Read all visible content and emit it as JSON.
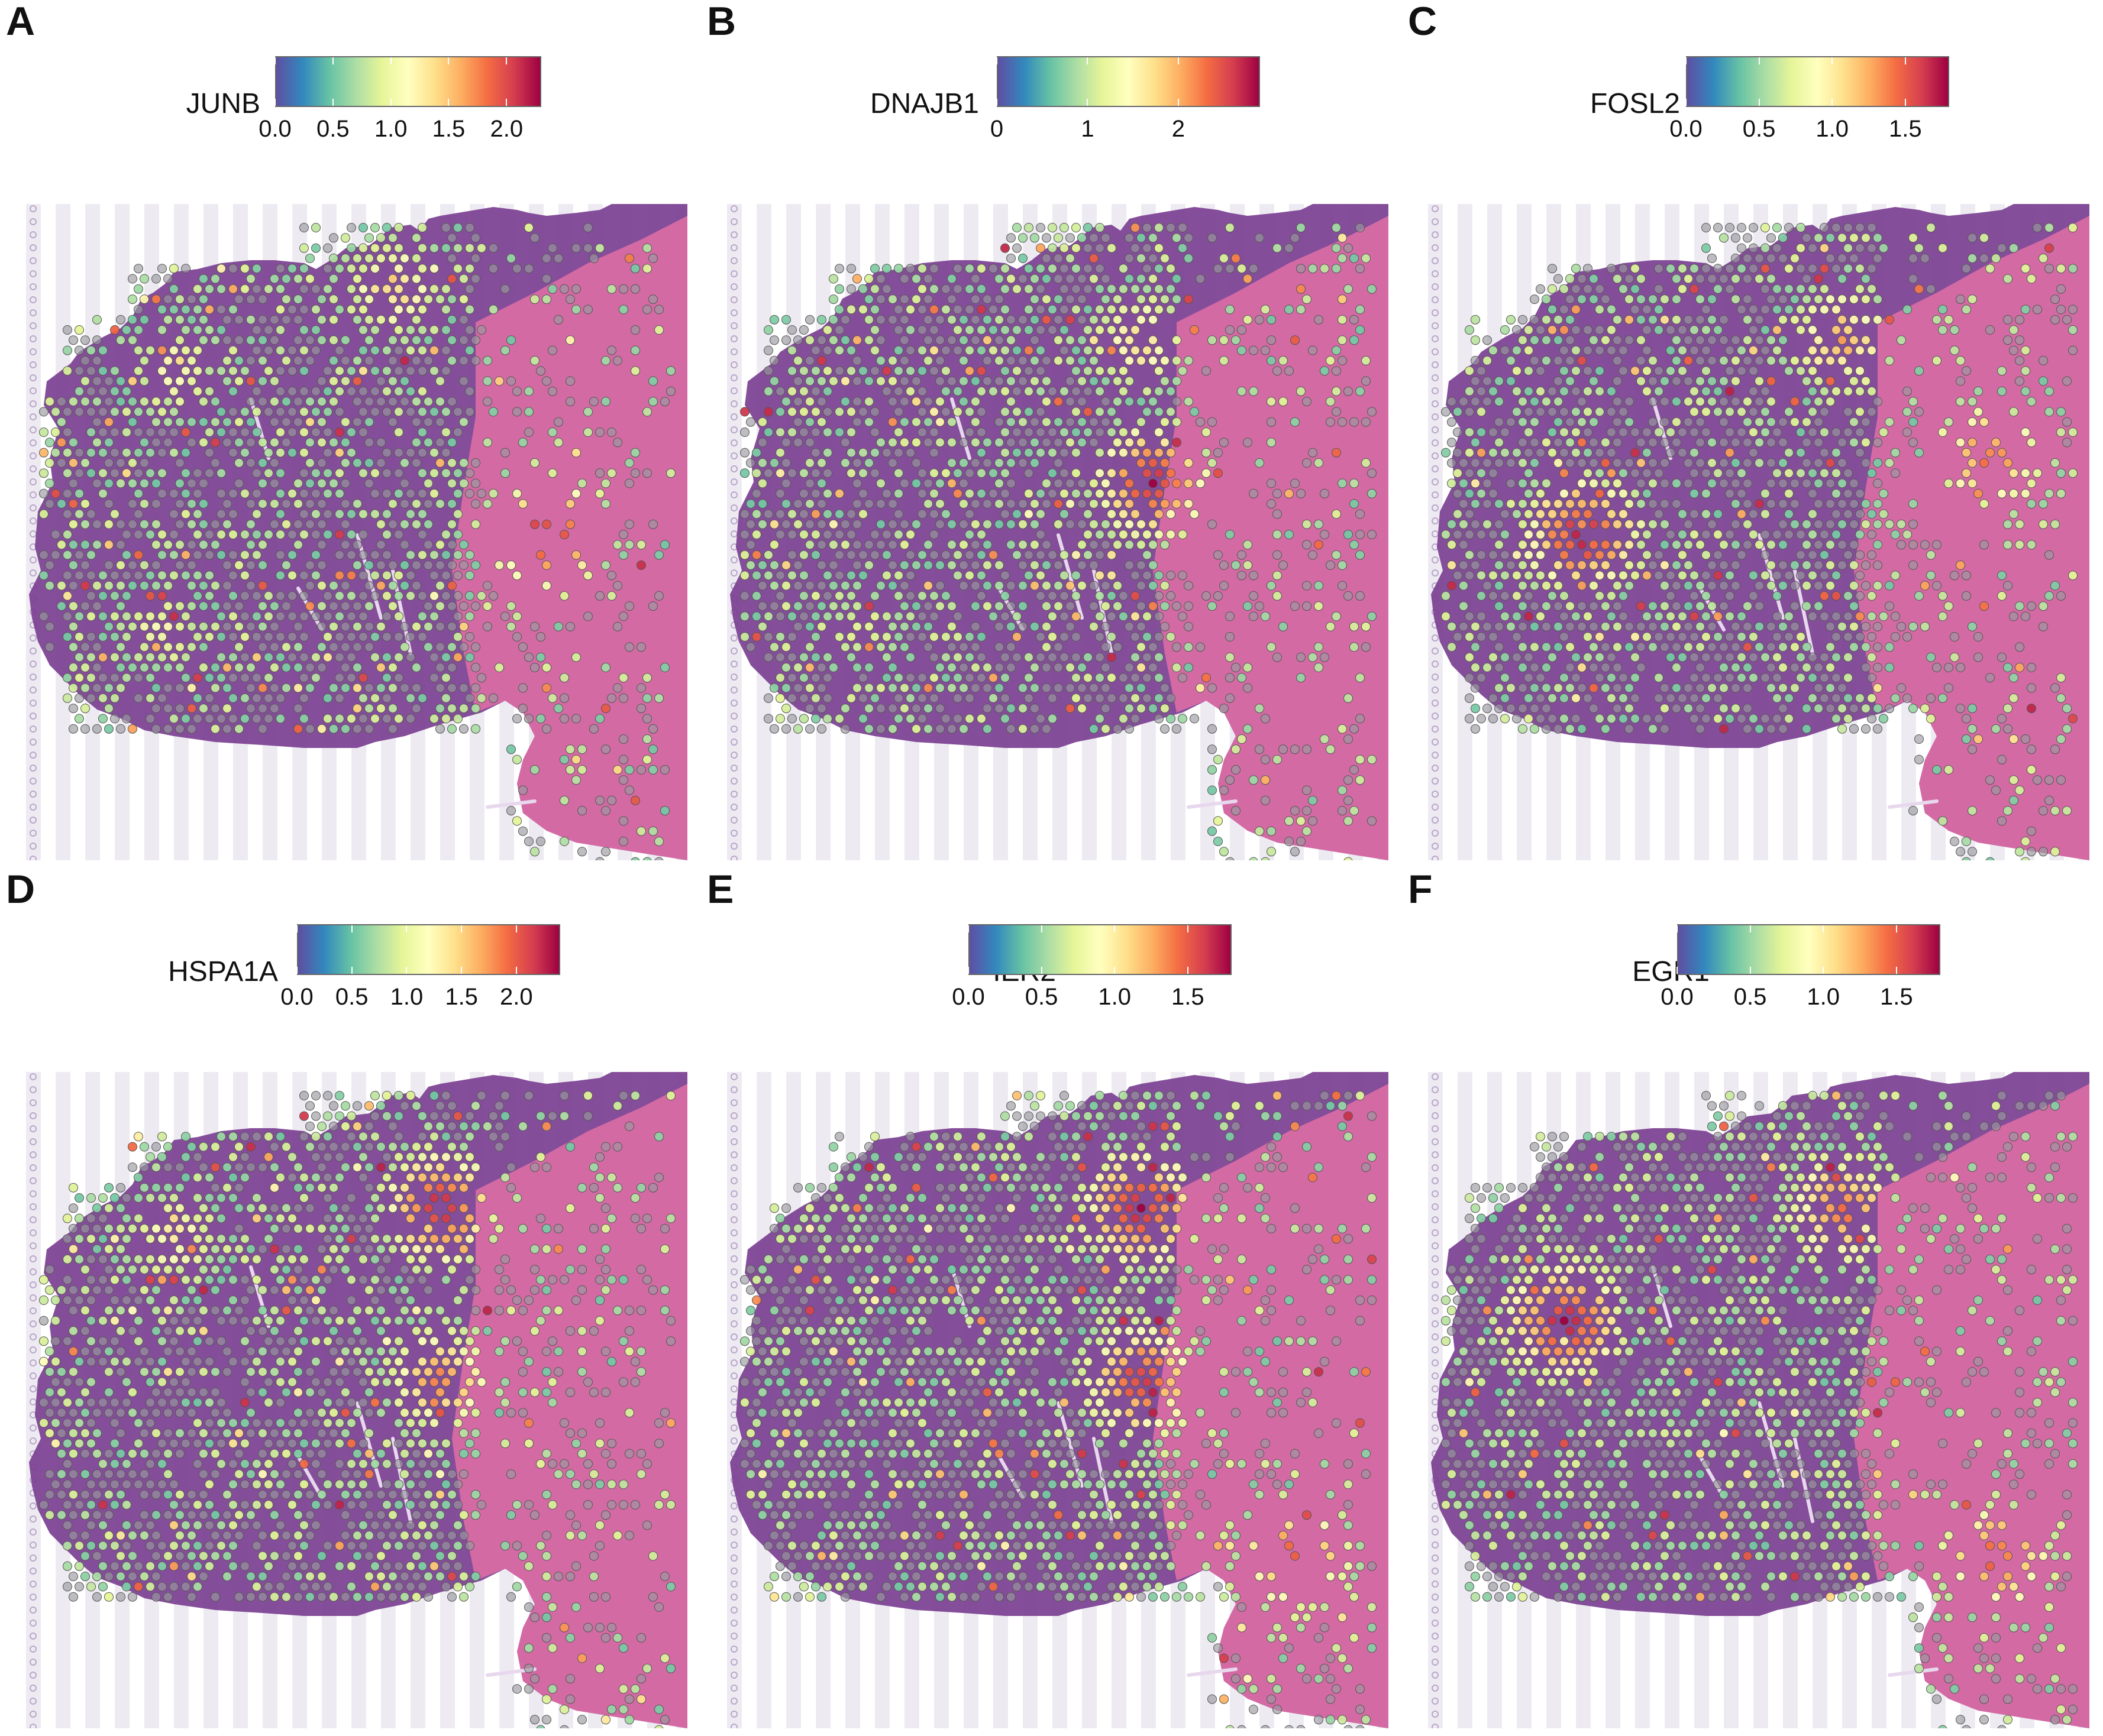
{
  "figure": {
    "colors": {
      "scale": [
        "#5e4fa2",
        "#3288bd",
        "#66c2a5",
        "#abdda4",
        "#e6f598",
        "#ffffbf",
        "#fee08b",
        "#fdae61",
        "#f46d43",
        "#d53e4f",
        "#9e0142"
      ],
      "tissue_dark": "#7b3f91",
      "tissue_light": "#d86ba4",
      "background_stripe": "#eeeaf2",
      "fiducial_dot": "#b9a6c9",
      "spot_outline": "#555555"
    }
  },
  "chart_data": [
    {
      "type": "heatmap",
      "panel": "A",
      "gene": "JUNB",
      "color_range": [
        0.0,
        2.3
      ],
      "colorbar_ticks": [
        "0.0",
        "0.5",
        "1.0",
        "1.5",
        "2.0"
      ],
      "colorbar_tick_values": [
        0.0,
        0.5,
        1.0,
        1.5,
        2.0
      ],
      "highlight_regions": [
        {
          "region": "upper-left lobe",
          "level": 1.2
        },
        {
          "region": "top cap",
          "level": 1.4
        },
        {
          "region": "lower-left",
          "level": 1.1
        },
        {
          "region": "right mid",
          "level": 2.2
        }
      ]
    },
    {
      "type": "heatmap",
      "panel": "B",
      "gene": "DNAJB1",
      "color_range": [
        0.0,
        2.9
      ],
      "colorbar_ticks": [
        "0",
        "1",
        "2"
      ],
      "colorbar_tick_values": [
        0,
        1,
        2
      ],
      "highlight_regions": [
        {
          "region": "top center",
          "level": 1.8
        },
        {
          "region": "center band",
          "level": 2.8
        },
        {
          "region": "lower-left",
          "level": 1.2
        }
      ]
    },
    {
      "type": "heatmap",
      "panel": "C",
      "gene": "FOSL2",
      "color_range": [
        0.0,
        1.8
      ],
      "colorbar_ticks": [
        "0.0",
        "0.5",
        "1.0",
        "1.5"
      ],
      "colorbar_tick_values": [
        0.0,
        0.5,
        1.0,
        1.5
      ],
      "highlight_regions": [
        {
          "region": "top center",
          "level": 1.2
        },
        {
          "region": "left lobe",
          "level": 1.7
        },
        {
          "region": "right",
          "level": 1.4
        }
      ]
    },
    {
      "type": "heatmap",
      "panel": "D",
      "gene": "HSPA1A",
      "color_range": [
        0.0,
        2.4
      ],
      "colorbar_ticks": [
        "0.0",
        "0.5",
        "1.0",
        "1.5",
        "2.0"
      ],
      "colorbar_tick_values": [
        0.0,
        0.5,
        1.0,
        1.5,
        2.0
      ],
      "highlight_regions": [
        {
          "region": "top center",
          "level": 2.3
        },
        {
          "region": "center",
          "level": 1.8
        },
        {
          "region": "upper-left lobe",
          "level": 1.3
        }
      ]
    },
    {
      "type": "heatmap",
      "panel": "E",
      "gene": "IER2",
      "color_range": [
        0.0,
        1.8
      ],
      "colorbar_ticks": [
        "0.0",
        "0.5",
        "1.0",
        "1.5"
      ],
      "colorbar_tick_values": [
        0.0,
        0.5,
        1.0,
        1.5
      ],
      "highlight_regions": [
        {
          "region": "top center",
          "level": 1.7
        },
        {
          "region": "center",
          "level": 1.6
        },
        {
          "region": "right lower",
          "level": 1.5
        }
      ]
    },
    {
      "type": "heatmap",
      "panel": "F",
      "gene": "EGR1",
      "color_range": [
        0.0,
        1.8
      ],
      "colorbar_ticks": [
        "0.0",
        "0.5",
        "1.0",
        "1.5"
      ],
      "colorbar_tick_values": [
        0.0,
        0.5,
        1.0,
        1.5
      ],
      "highlight_regions": [
        {
          "region": "top center",
          "level": 1.4
        },
        {
          "region": "left",
          "level": 1.7
        },
        {
          "region": "right lower",
          "level": 1.5
        }
      ]
    }
  ]
}
